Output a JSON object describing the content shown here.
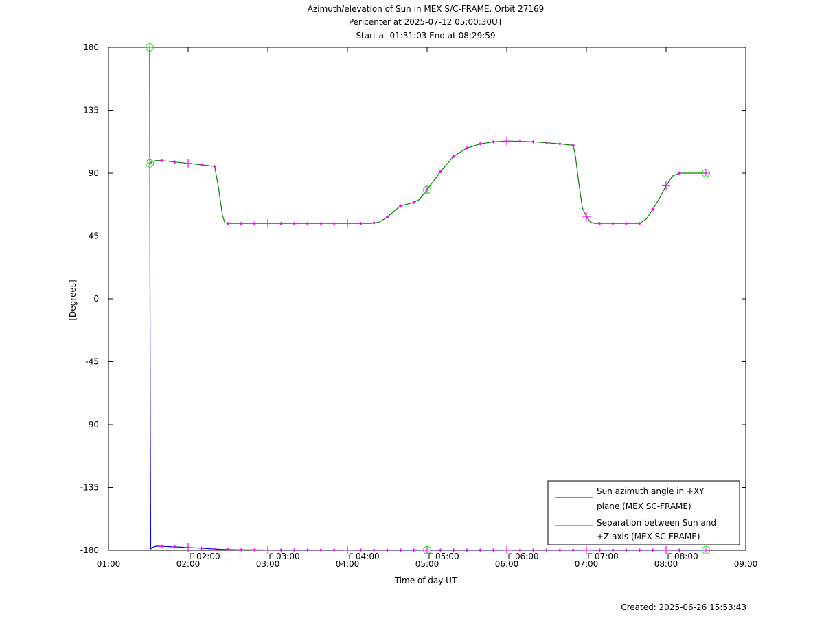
{
  "chart_data": {
    "type": "line",
    "title_lines": [
      "Azimuth/elevation of Sun in MEX S/C-FRAME.  Orbit 27169",
      "Pericenter at 2025-07-12 05:00:30UT",
      "Start at 01:31:03 End at 08:29:59"
    ],
    "xlabel": "Time of day UT",
    "ylabel": "[Degrees]",
    "xlim_hours": [
      1,
      9
    ],
    "ylim": [
      -180,
      180
    ],
    "x_tick_values_hours": [
      1,
      2,
      3,
      4,
      5,
      6,
      7,
      8,
      9
    ],
    "x_tick_labels": [
      "01:00",
      "02:00",
      "03:00",
      "04:00",
      "05:00",
      "06:00",
      "07:00",
      "08:00",
      "09:00"
    ],
    "y_ticks": [
      180,
      135,
      90,
      45,
      0,
      -45,
      -90,
      -135,
      -180
    ],
    "y_tick_labels": [
      "180",
      "135",
      "90",
      "45",
      "0",
      "-45",
      "-90",
      "-135",
      "-180"
    ],
    "marker_labels": [
      "02:00",
      "03:00",
      "04:00",
      "05:00",
      "06:00",
      "07:00",
      "08:00"
    ],
    "marker_label_hours": [
      2,
      3,
      4,
      5,
      6,
      7,
      8
    ],
    "legend_position": "bottom-right",
    "series": [
      {
        "name": "Sun azimuth angle in +XY plane (MEX SC-FRAME)",
        "legend_lines": [
          "Sun azimuth angle in +XY",
          "plane (MEX SC-FRAME)"
        ],
        "color": "#0000ff",
        "points": [
          [
            1.5175,
            180
          ],
          [
            1.52,
            50
          ],
          [
            1.525,
            -90
          ],
          [
            1.53,
            -179
          ],
          [
            1.55,
            -178
          ],
          [
            1.6,
            -177
          ],
          [
            1.7,
            -177.2
          ],
          [
            1.8,
            -177.5
          ],
          [
            2.0,
            -178
          ],
          [
            2.2,
            -178.6
          ],
          [
            2.4,
            -179.3
          ],
          [
            2.6,
            -179.6
          ],
          [
            3.0,
            -179.8
          ],
          [
            5.0,
            -179.9
          ],
          [
            8.5,
            -179.9
          ]
        ]
      },
      {
        "name": "Separation between Sun and +Z axis (MEX SC-FRAME)",
        "legend_lines": [
          "Separation between Sun and",
          "+Z axis (MEX SC-FRAME)"
        ],
        "color": "#008000",
        "points": [
          [
            1.5175,
            97
          ],
          [
            1.55,
            98.5
          ],
          [
            1.6,
            99
          ],
          [
            1.667,
            99
          ],
          [
            1.833,
            98
          ],
          [
            2.0,
            97
          ],
          [
            2.167,
            96
          ],
          [
            2.333,
            94.8
          ],
          [
            2.38,
            80
          ],
          [
            2.43,
            60
          ],
          [
            2.46,
            54.5
          ],
          [
            2.5,
            54
          ],
          [
            3.0,
            54
          ],
          [
            3.5,
            54
          ],
          [
            4.0,
            54
          ],
          [
            4.3,
            54
          ],
          [
            4.4,
            55
          ],
          [
            4.5,
            58.5
          ],
          [
            4.6,
            63.5
          ],
          [
            4.667,
            66.5
          ],
          [
            4.833,
            69
          ],
          [
            4.9,
            71
          ],
          [
            5.0,
            78
          ],
          [
            5.167,
            91
          ],
          [
            5.333,
            102
          ],
          [
            5.5,
            108
          ],
          [
            5.667,
            111
          ],
          [
            5.833,
            112.5
          ],
          [
            6.0,
            113
          ],
          [
            6.167,
            112.8
          ],
          [
            6.333,
            112.5
          ],
          [
            6.5,
            111.8
          ],
          [
            6.667,
            111
          ],
          [
            6.833,
            110
          ],
          [
            6.86,
            103
          ],
          [
            6.9,
            85
          ],
          [
            6.95,
            65
          ],
          [
            7.0,
            59
          ],
          [
            7.05,
            55
          ],
          [
            7.1,
            54
          ],
          [
            7.5,
            54
          ],
          [
            7.667,
            54
          ],
          [
            7.75,
            57
          ],
          [
            7.833,
            64
          ],
          [
            7.917,
            72
          ],
          [
            8.0,
            81
          ],
          [
            8.083,
            88
          ],
          [
            8.167,
            90
          ],
          [
            8.5,
            90
          ]
        ]
      }
    ],
    "magenta_dot_hours": [
      1.6667,
      1.8333,
      2.1667,
      2.3333,
      2.5,
      2.6667,
      2.8333,
      3.1667,
      3.3333,
      3.5,
      3.6667,
      3.8333,
      4.1667,
      4.3333,
      4.5,
      4.6667,
      4.8333,
      5.1667,
      5.3333,
      5.5,
      5.6667,
      5.8333,
      6.1667,
      6.3333,
      6.5,
      6.6667,
      6.8333,
      7.1667,
      7.3333,
      7.5,
      7.6667,
      7.8333,
      8.1667
    ],
    "magenta_plus_hours": [
      2,
      3,
      4,
      5,
      6,
      7,
      8
    ],
    "circle_marker_hours": [
      1.5175,
      5.0,
      8.4997
    ]
  },
  "footer": {
    "created": "Created: 2025-06-26 15:53:43"
  },
  "colors": {
    "azimuth": "#0000ff",
    "separation": "#008000",
    "marker": "#ff00ff",
    "circle": "#00ff00"
  }
}
